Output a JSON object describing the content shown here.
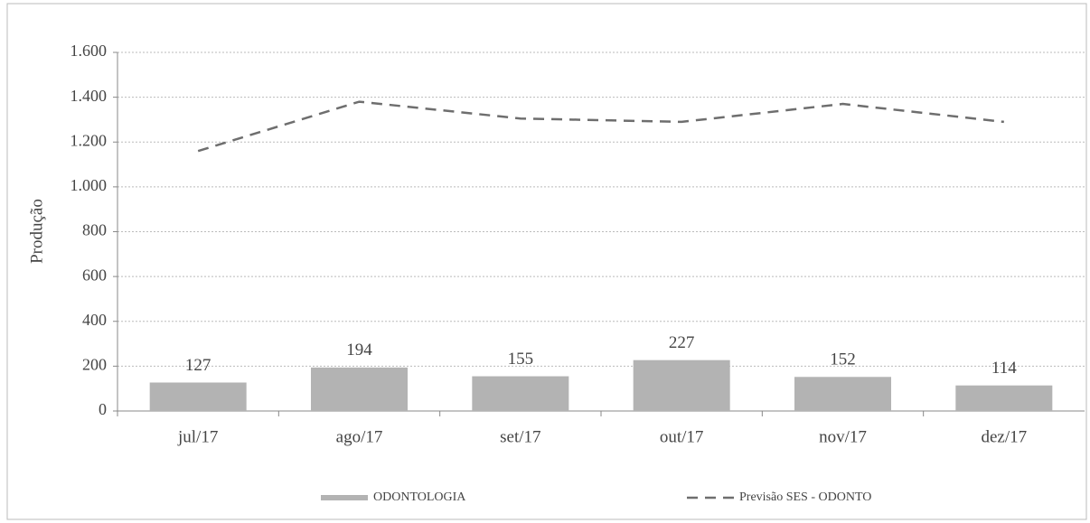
{
  "chart_data": {
    "type": "combo",
    "ylabel": "Produção",
    "categories": [
      "jul/17",
      "ago/17",
      "set/17",
      "out/17",
      "nov/17",
      "dez/17"
    ],
    "series": [
      {
        "name": "ODONTOLOGIA",
        "type": "bar",
        "color": "#b3b3b3",
        "values": [
          127,
          194,
          155,
          227,
          152,
          114
        ],
        "data_labels": true
      },
      {
        "name": "Previsão SES - ODONTO",
        "type": "line",
        "color": "#6e6e6e",
        "dashed": true,
        "values": [
          1160,
          1380,
          1305,
          1290,
          1370,
          1290
        ]
      }
    ],
    "ylim": [
      0,
      1600
    ],
    "yticks": [
      0,
      200,
      400,
      600,
      800,
      {
        "value": 1000,
        "label": "1.000"
      },
      {
        "value": 1200,
        "label": "1.200"
      },
      {
        "value": 1400,
        "label": "1.400"
      },
      {
        "value": 1600,
        "label": "1.600"
      }
    ],
    "grid": true,
    "legend": "bottom"
  }
}
